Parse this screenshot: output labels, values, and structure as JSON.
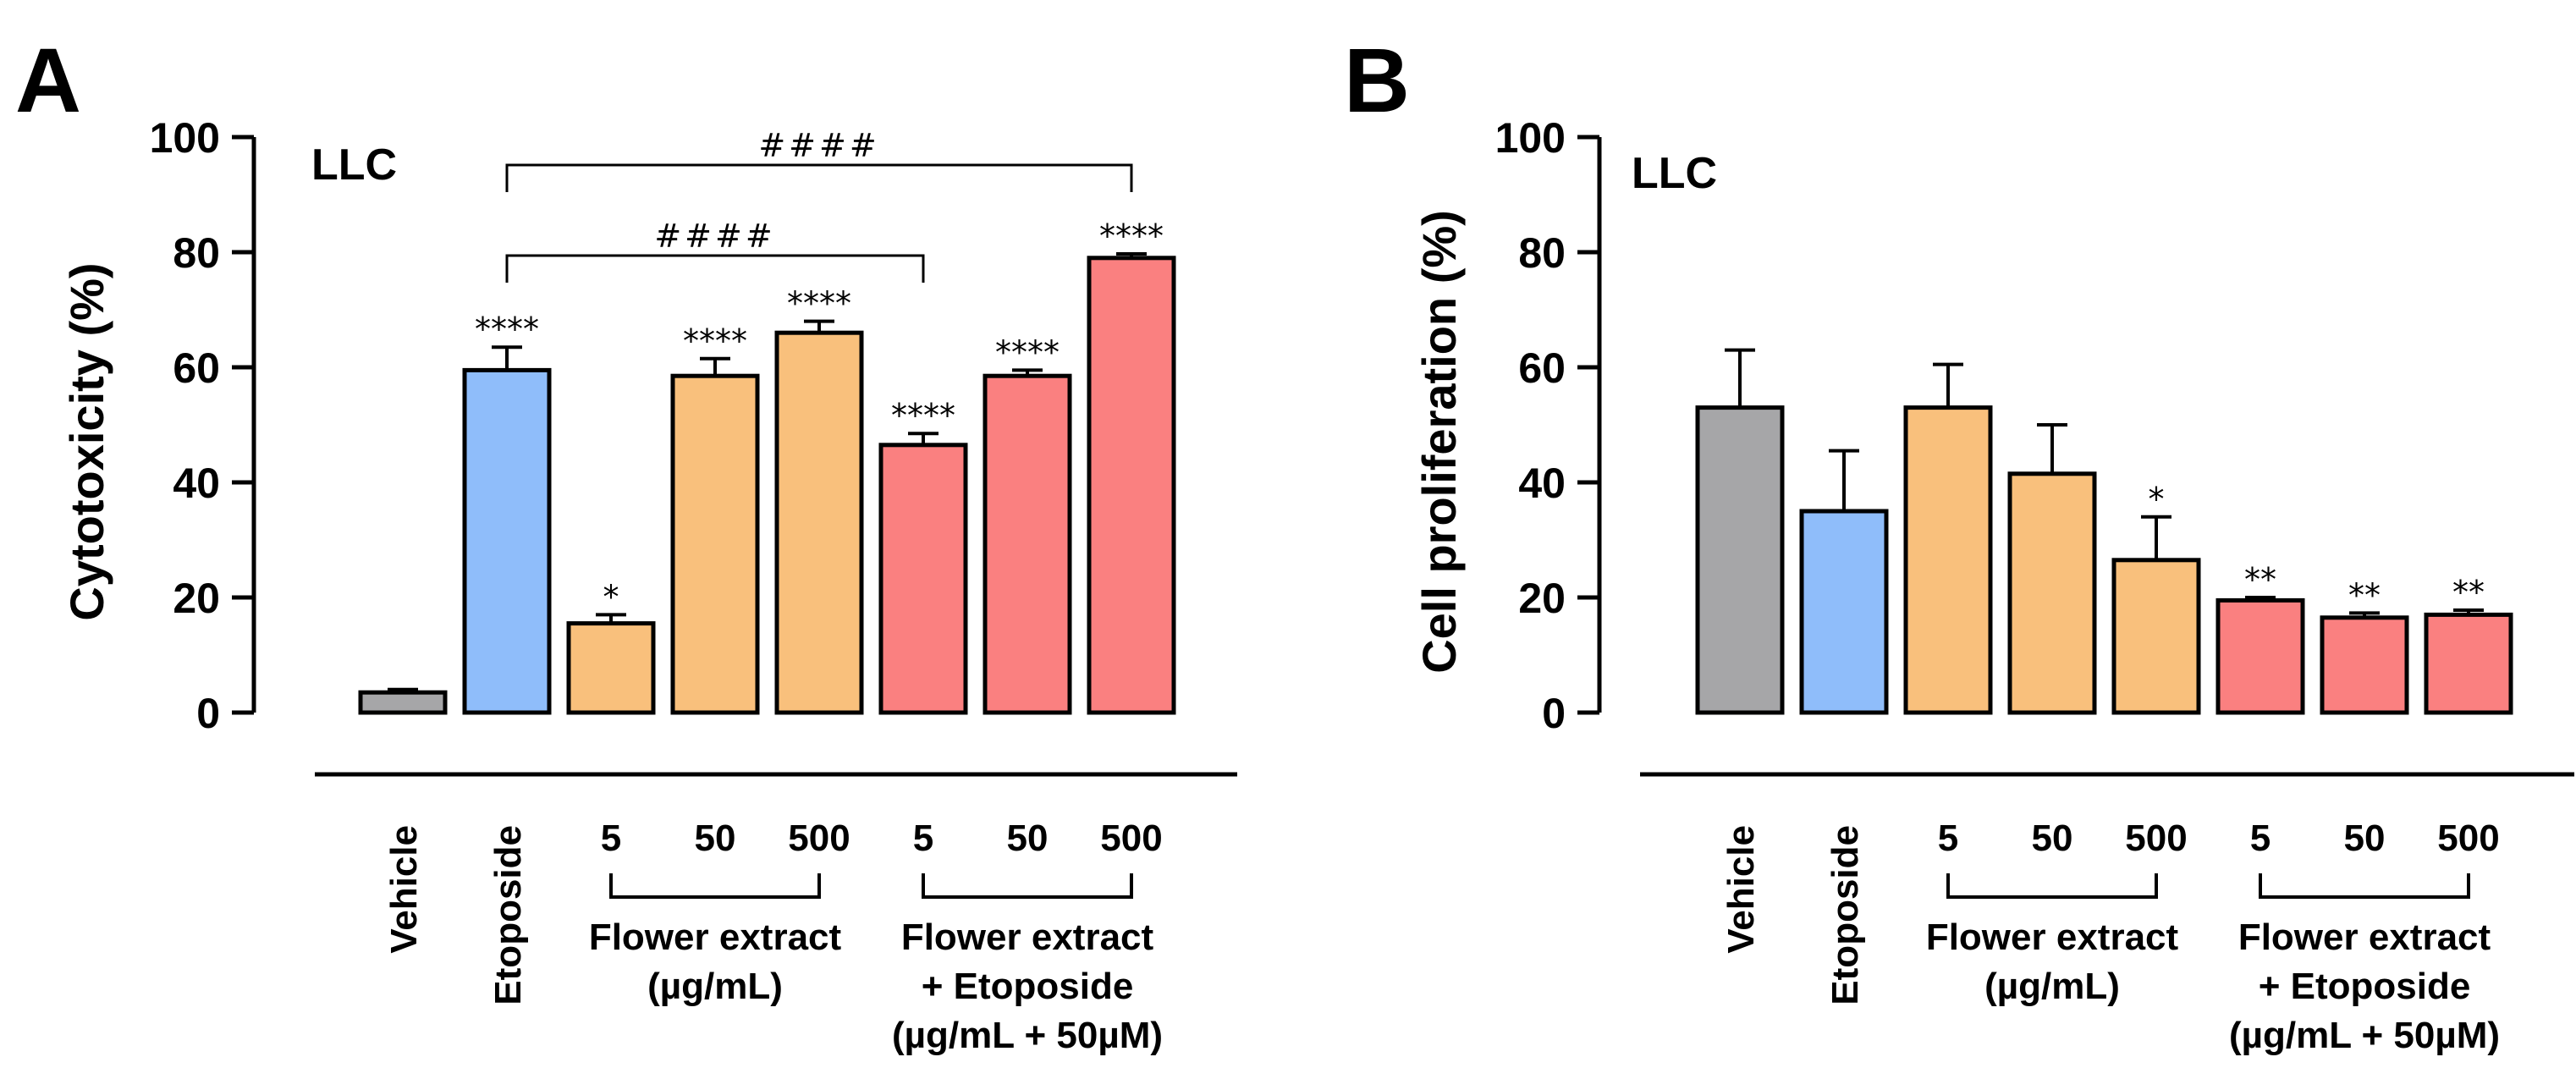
{
  "chart_data": [
    {
      "type": "bar",
      "panel": "A",
      "title": "LLC",
      "ylabel": "Cytotoxicity (%)",
      "ylim": [
        0,
        100
      ],
      "yticks": [
        "0",
        "20",
        "40",
        "60",
        "80",
        "100"
      ],
      "categories": [
        "Vehicle",
        "Etoposide",
        "5",
        "50",
        "500",
        "5",
        "50",
        "500"
      ],
      "values": [
        3.5,
        59.5,
        15.5,
        58.5,
        66,
        46.5,
        58.5,
        79
      ],
      "errors": [
        0.5,
        4,
        1.5,
        3,
        2,
        2,
        1,
        0.7
      ],
      "colors": [
        "#a6a6a8",
        "#8fbdfa",
        "#f9c07c",
        "#f9c07c",
        "#f9c07c",
        "#fa8080",
        "#fa8080",
        "#fa8080"
      ],
      "significance": [
        "",
        "****",
        "*",
        "****",
        "****",
        "****",
        "****",
        "****"
      ],
      "groups": [
        {
          "lines": [
            "Flower extract",
            "(µg/mL)"
          ]
        },
        {
          "lines": [
            "Flower extract",
            "+ Etoposide",
            "(µg/mL + 50µM)"
          ]
        }
      ],
      "comparisons": [
        {
          "label": "####",
          "from": 1,
          "to": 5
        },
        {
          "label": "####",
          "from": 1,
          "to": 7
        }
      ]
    },
    {
      "type": "bar",
      "panel": "B",
      "title": "LLC",
      "ylabel": "Cell proliferation (%)",
      "ylim": [
        0,
        100
      ],
      "yticks": [
        "0",
        "20",
        "40",
        "60",
        "80",
        "100"
      ],
      "categories": [
        "Vehicle",
        "Etoposide",
        "5",
        "50",
        "500",
        "5",
        "50",
        "500"
      ],
      "values": [
        53,
        35,
        53,
        41.5,
        26.5,
        19.5,
        16.5,
        17
      ],
      "errors": [
        10,
        10.5,
        7.5,
        8.5,
        7.5,
        0.5,
        0.8,
        0.8
      ],
      "colors": [
        "#a6a6a8",
        "#8fbdfa",
        "#f9c07c",
        "#f9c07c",
        "#f9c07c",
        "#fa8080",
        "#fa8080",
        "#fa8080"
      ],
      "significance": [
        "",
        "",
        "",
        "",
        "*",
        "**",
        "**",
        "**"
      ],
      "groups": [
        {
          "lines": [
            "Flower extract",
            "(µg/mL)"
          ]
        },
        {
          "lines": [
            "Flower extract",
            "+ Etoposide",
            "(µg/mL + 50µM)"
          ]
        }
      ],
      "comparisons": []
    }
  ]
}
